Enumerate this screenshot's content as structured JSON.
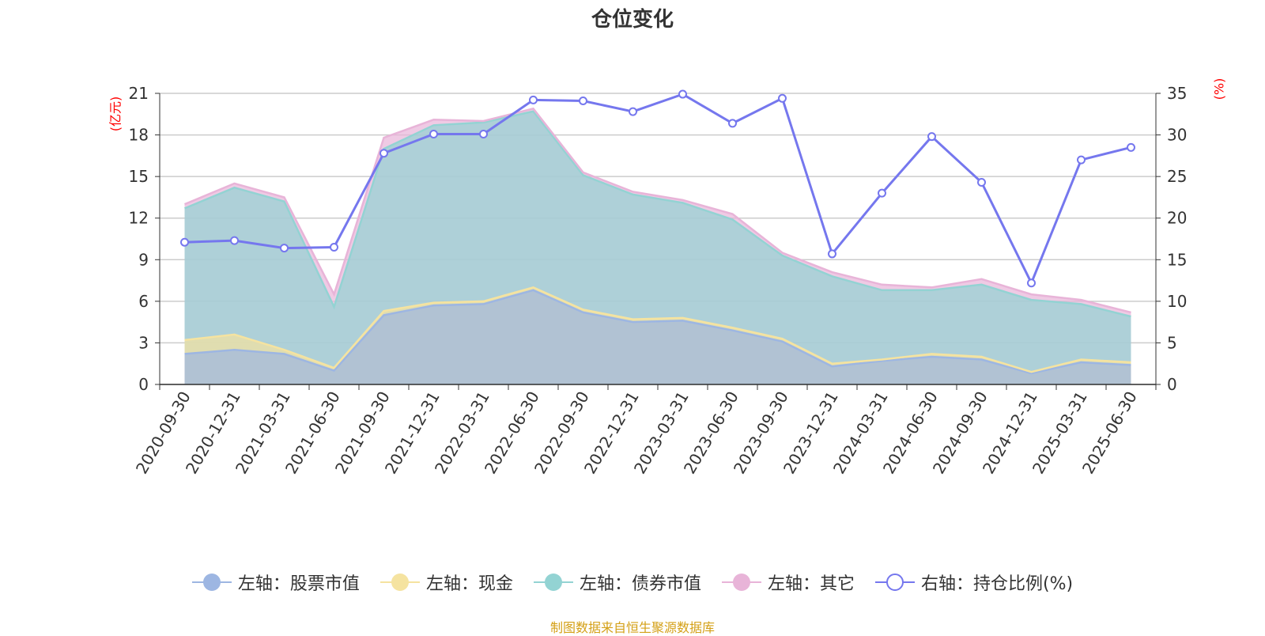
{
  "title": "仓位变化",
  "footer": "制图数据来自恒生聚源数据库",
  "chart_data": {
    "type": "area",
    "title": "仓位变化",
    "categories": [
      "2020-09-30",
      "2020-12-31",
      "2021-03-31",
      "2021-06-30",
      "2021-09-30",
      "2021-12-31",
      "2022-03-31",
      "2022-06-30",
      "2022-09-30",
      "2022-12-31",
      "2023-03-31",
      "2023-06-30",
      "2023-09-30",
      "2023-12-31",
      "2024-03-31",
      "2024-06-30",
      "2024-09-30",
      "2024-12-31",
      "2025-03-31",
      "2025-06-30"
    ],
    "left_axis": {
      "unit": "(亿元)",
      "ylim": [
        0,
        21
      ],
      "ticks": [
        0,
        3,
        6,
        9,
        12,
        15,
        18,
        21
      ]
    },
    "right_axis": {
      "unit": "(%)",
      "ylim": [
        0,
        35
      ],
      "ticks": [
        0,
        5,
        10,
        15,
        20,
        25,
        30,
        35
      ]
    },
    "stacked": true,
    "grid": true,
    "series": [
      {
        "name": "左轴：股票市值",
        "axis": "left",
        "type": "area",
        "color": "#9db6e2",
        "values": [
          2.2,
          2.5,
          2.2,
          1.0,
          5.0,
          5.7,
          5.8,
          6.8,
          5.2,
          4.5,
          4.6,
          3.9,
          3.1,
          1.3,
          1.7,
          2.0,
          1.8,
          0.8,
          1.6,
          1.4
        ]
      },
      {
        "name": "左轴：现金",
        "axis": "left",
        "type": "area",
        "color": "#f5e3a0",
        "values": [
          1.0,
          1.1,
          0.3,
          0.2,
          0.3,
          0.2,
          0.2,
          0.2,
          0.2,
          0.2,
          0.2,
          0.2,
          0.2,
          0.2,
          0.1,
          0.2,
          0.2,
          0.1,
          0.2,
          0.2
        ]
      },
      {
        "name": "左轴：债券市值",
        "axis": "left",
        "type": "area",
        "color": "#93d3d3",
        "values": [
          9.5,
          10.6,
          10.7,
          4.4,
          11.7,
          12.8,
          12.9,
          12.7,
          9.7,
          9.0,
          8.3,
          7.8,
          6.0,
          6.3,
          5.0,
          4.6,
          5.2,
          5.2,
          4.0,
          3.3
        ]
      },
      {
        "name": "左轴：其它",
        "axis": "left",
        "type": "area",
        "color": "#e8b4d8",
        "values": [
          0.3,
          0.3,
          0.3,
          0.9,
          0.8,
          0.4,
          0.1,
          0.2,
          0.2,
          0.2,
          0.2,
          0.4,
          0.2,
          0.3,
          0.4,
          0.2,
          0.4,
          0.4,
          0.3,
          0.3
        ]
      },
      {
        "name": "右轴：持仓比例(%)",
        "axis": "right",
        "type": "line",
        "color": "#7577ee",
        "values": [
          17.1,
          17.3,
          16.4,
          16.5,
          27.8,
          30.1,
          30.1,
          34.2,
          34.1,
          32.8,
          34.9,
          31.4,
          34.4,
          15.7,
          23.0,
          29.8,
          24.3,
          12.2,
          27.0,
          28.5
        ]
      }
    ]
  }
}
